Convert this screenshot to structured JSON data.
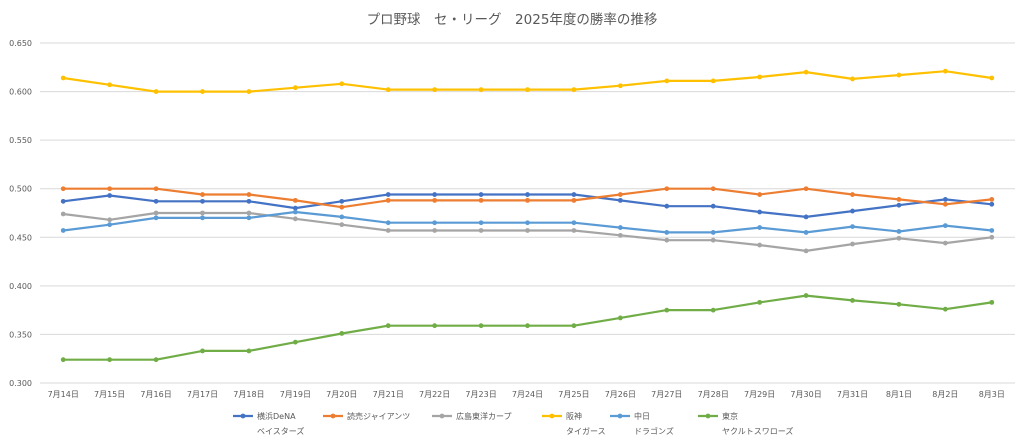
{
  "chart_data": {
    "type": "line",
    "title": "プロ野球　セ・リーグ　2025年度の勝率の推移",
    "xlabel": "",
    "ylabel": "",
    "ylim": [
      0.3,
      0.65
    ],
    "yticks": [
      "0.300",
      "0.350",
      "0.400",
      "0.450",
      "0.500",
      "0.550",
      "0.600",
      "0.650"
    ],
    "grid": true,
    "legend_position": "bottom",
    "categories": [
      "7月14日",
      "7月15日",
      "7月16日",
      "7月17日",
      "7月18日",
      "7月19日",
      "7月20日",
      "7月21日",
      "7月22日",
      "7月23日",
      "7月24日",
      "7月25日",
      "7月26日",
      "7月27日",
      "7月28日",
      "7月29日",
      "7月30日",
      "7月31日",
      "8月1日",
      "8月2日",
      "8月3日"
    ],
    "series": [
      {
        "name": "横浜DeNA",
        "name_line2": "ベイスターズ",
        "color": "#4472c4",
        "values": [
          0.487,
          0.493,
          0.487,
          0.487,
          0.487,
          0.48,
          0.487,
          0.494,
          0.494,
          0.494,
          0.494,
          0.494,
          0.488,
          0.482,
          0.482,
          0.476,
          0.471,
          0.477,
          0.483,
          0.489,
          0.484
        ]
      },
      {
        "name": "読売ジャイアンツ",
        "name_line2": "",
        "color": "#ed7d31",
        "values": [
          0.5,
          0.5,
          0.5,
          0.494,
          0.494,
          0.488,
          0.481,
          0.488,
          0.488,
          0.488,
          0.488,
          0.488,
          0.494,
          0.5,
          0.5,
          0.494,
          0.5,
          0.494,
          0.489,
          0.484,
          0.489
        ]
      },
      {
        "name": "広島東洋カープ",
        "name_line2": "",
        "color": "#a5a5a5",
        "values": [
          0.474,
          0.468,
          0.475,
          0.475,
          0.475,
          0.469,
          0.463,
          0.457,
          0.457,
          0.457,
          0.457,
          0.457,
          0.452,
          0.447,
          0.447,
          0.442,
          0.436,
          0.443,
          0.449,
          0.444,
          0.45
        ]
      },
      {
        "name": "阪神",
        "name_line2": "タイガース",
        "color": "#ffc000",
        "values": [
          0.614,
          0.607,
          0.6,
          0.6,
          0.6,
          0.604,
          0.608,
          0.602,
          0.602,
          0.602,
          0.602,
          0.602,
          0.606,
          0.611,
          0.611,
          0.615,
          0.62,
          0.613,
          0.617,
          0.621,
          0.614
        ]
      },
      {
        "name": "中日",
        "name_line2": "ドラゴンズ",
        "color": "#5b9bd5",
        "values": [
          0.457,
          0.463,
          0.47,
          0.47,
          0.47,
          0.476,
          0.471,
          0.465,
          0.465,
          0.465,
          0.465,
          0.465,
          0.46,
          0.455,
          0.455,
          0.46,
          0.455,
          0.461,
          0.456,
          0.462,
          0.457
        ]
      },
      {
        "name": "東京",
        "name_line2": "ヤクルトスワローズ",
        "color": "#70ad47",
        "values": [
          0.324,
          0.324,
          0.324,
          0.333,
          0.333,
          0.342,
          0.351,
          0.359,
          0.359,
          0.359,
          0.359,
          0.359,
          0.367,
          0.375,
          0.375,
          0.383,
          0.39,
          0.385,
          0.381,
          0.376,
          0.383
        ]
      }
    ]
  }
}
